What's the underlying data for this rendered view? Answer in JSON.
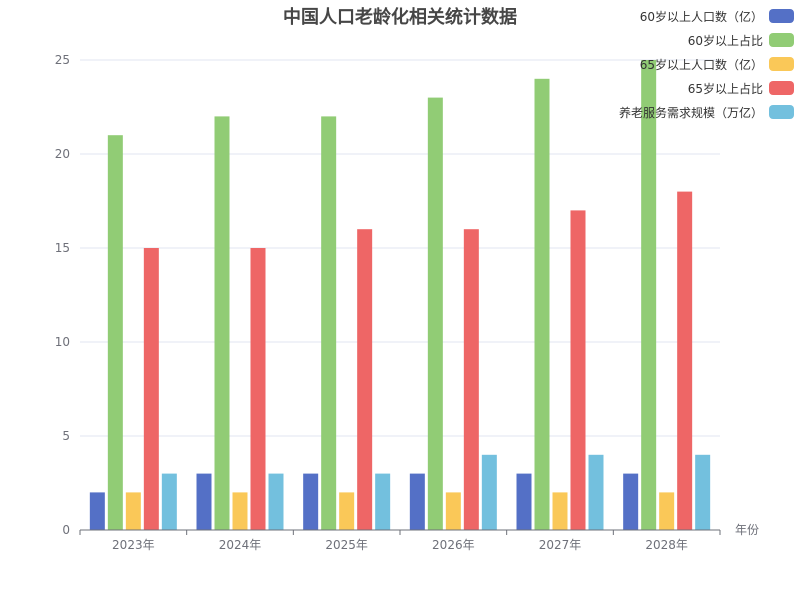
{
  "chart_data": {
    "type": "bar",
    "title": "中国人口老龄化相关统计数据",
    "xlabel": "年份",
    "ylabel": "",
    "categories": [
      "2023年",
      "2024年",
      "2025年",
      "2026年",
      "2027年",
      "2028年"
    ],
    "ylim": [
      0,
      25
    ],
    "yticks": [
      0,
      5,
      10,
      15,
      20,
      25
    ],
    "grid": true,
    "legend_position": "top-right",
    "series": [
      {
        "name": "60岁以上人口数（亿）",
        "color": "#5470c6",
        "values": [
          2,
          3,
          3,
          3,
          3,
          3
        ]
      },
      {
        "name": "60岁以上占比",
        "color": "#91cc75",
        "values": [
          21,
          22,
          22,
          23,
          24,
          25
        ]
      },
      {
        "name": "65岁以上人口数（亿）",
        "color": "#fac858",
        "values": [
          2,
          2,
          2,
          2,
          2,
          2
        ]
      },
      {
        "name": "65岁以上占比",
        "color": "#ee6666",
        "values": [
          15,
          15,
          16,
          16,
          17,
          18
        ]
      },
      {
        "name": "养老服务需求规模（万亿）",
        "color": "#73c0de",
        "values": [
          3,
          3,
          3,
          4,
          4,
          4
        ]
      }
    ]
  }
}
